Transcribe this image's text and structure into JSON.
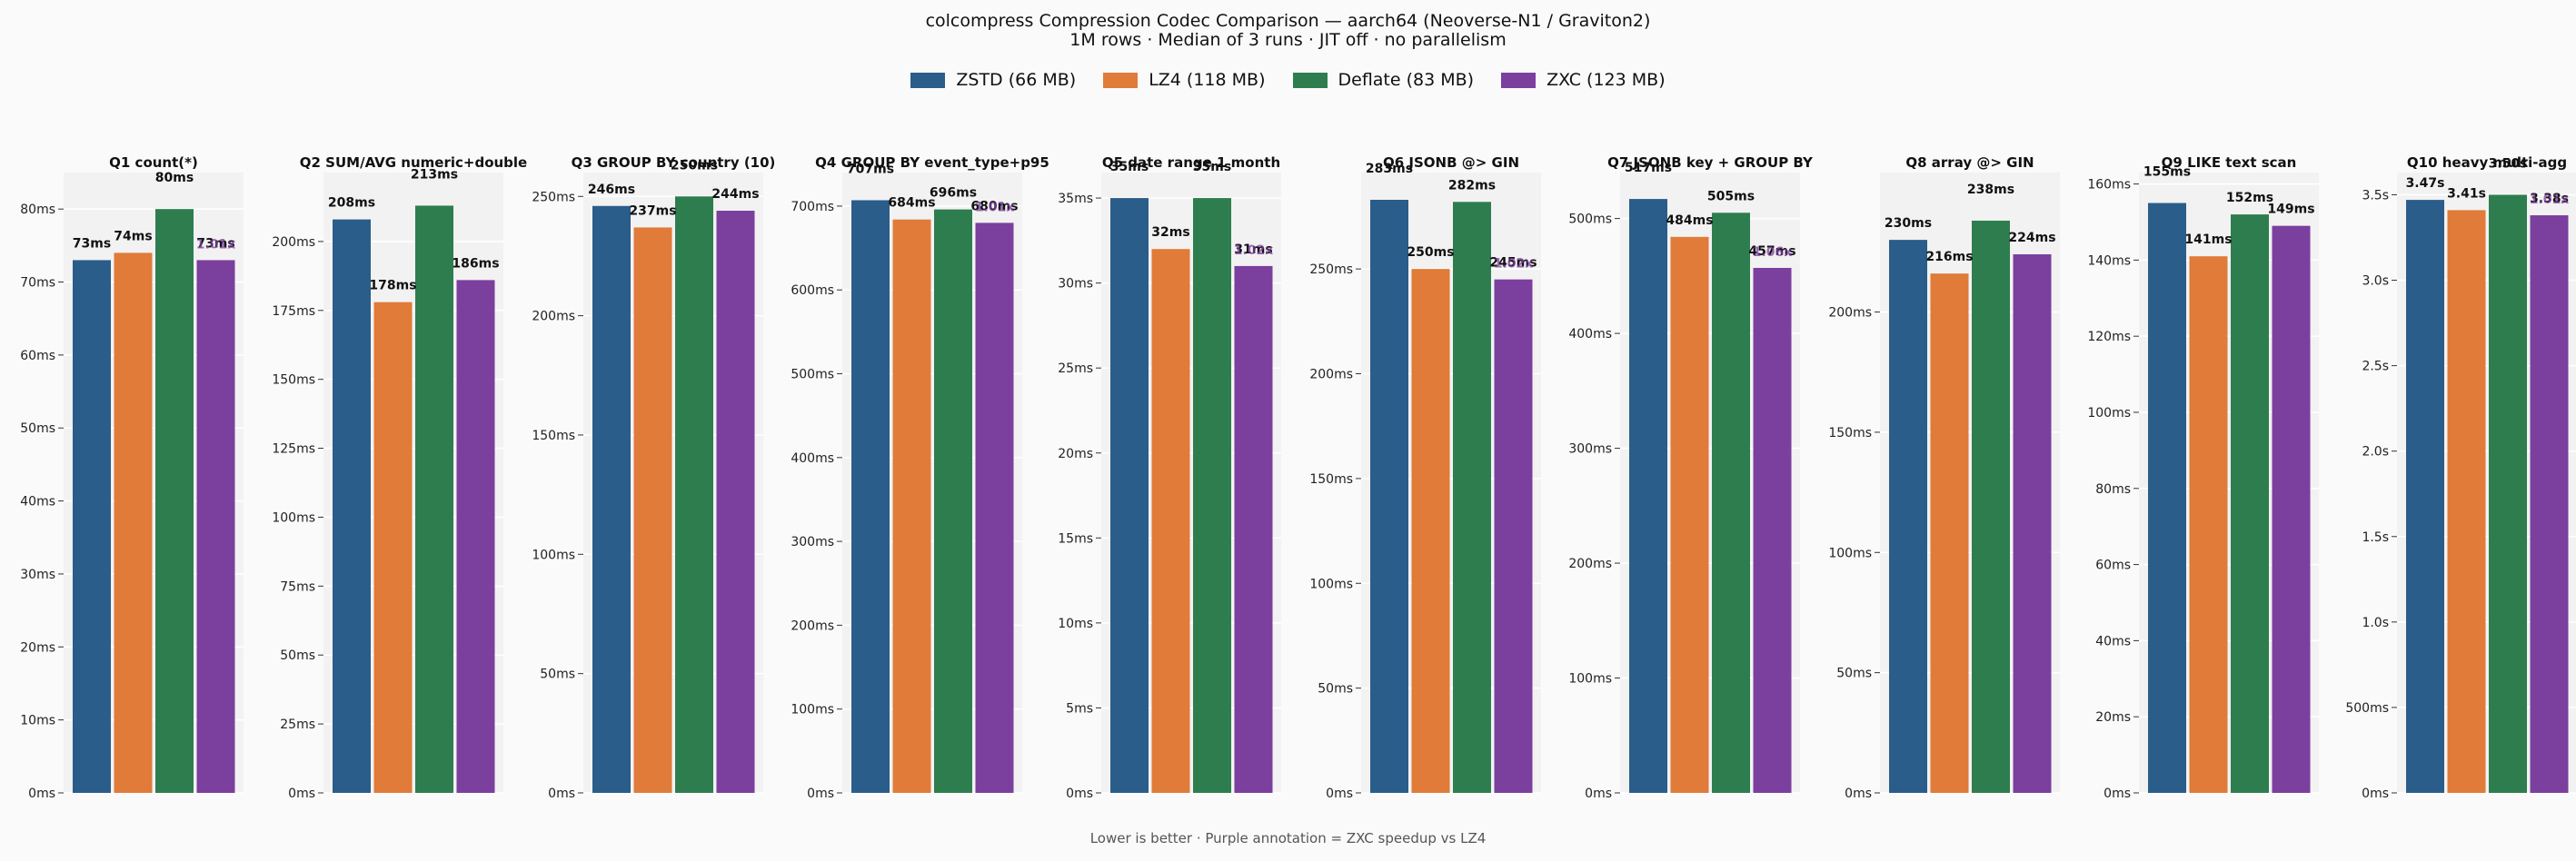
{
  "title": "colcompress Compression Codec Comparison — aarch64 (Neoverse-N1 / Graviton2)",
  "subtitle": "1M rows · Median of 3 runs · JIT off · no parallelism",
  "footer": "Lower is better  ·  Purple annotation = ZXC speedup vs LZ4",
  "colors": {
    "ZSTD": "#2a5d8a",
    "LZ4": "#e07b39",
    "Deflate": "#2e7d4f",
    "ZXC": "#7b3f9e"
  },
  "legend": [
    {
      "key": "ZSTD",
      "label": "ZSTD (66 MB)"
    },
    {
      "key": "LZ4",
      "label": "LZ4 (118 MB)"
    },
    {
      "key": "Deflate",
      "label": "Deflate (83 MB)"
    },
    {
      "key": "ZXC",
      "label": "ZXC (123 MB)"
    }
  ],
  "chart_data": [
    {
      "type": "bar",
      "title": "Q1 count(*)",
      "categories": [
        "ZSTD",
        "LZ4",
        "Deflate",
        "ZXC"
      ],
      "values": [
        73,
        74,
        80,
        73
      ],
      "value_labels": [
        "73ms",
        "74ms",
        "80ms",
        "73ms"
      ],
      "ylim": [
        0,
        85
      ],
      "ticks": [
        0,
        10,
        20,
        30,
        40,
        50,
        60,
        70,
        80
      ],
      "tick_labels": [
        "0ms",
        "10ms",
        "20ms",
        "30ms",
        "40ms",
        "50ms",
        "60ms",
        "70ms",
        "80ms"
      ],
      "zxc_annotation": "1.01x"
    },
    {
      "type": "bar",
      "title": "Q2 SUM/AVG numeric+double",
      "categories": [
        "ZSTD",
        "LZ4",
        "Deflate",
        "ZXC"
      ],
      "values": [
        208,
        178,
        213,
        186
      ],
      "value_labels": [
        "208ms",
        "178ms",
        "213ms",
        "186ms"
      ],
      "ylim": [
        0,
        225
      ],
      "ticks": [
        0,
        25,
        50,
        75,
        100,
        125,
        150,
        175,
        200
      ],
      "tick_labels": [
        "0ms",
        "25ms",
        "50ms",
        "75ms",
        "100ms",
        "125ms",
        "150ms",
        "175ms",
        "200ms"
      ],
      "zxc_annotation": ""
    },
    {
      "type": "bar",
      "title": "Q3 GROUP BY country (10)",
      "categories": [
        "ZSTD",
        "LZ4",
        "Deflate",
        "ZXC"
      ],
      "values": [
        246,
        237,
        250,
        244
      ],
      "value_labels": [
        "246ms",
        "237ms",
        "250ms",
        "244ms"
      ],
      "ylim": [
        0,
        260
      ],
      "ticks": [
        0,
        50,
        100,
        150,
        200,
        250
      ],
      "tick_labels": [
        "0ms",
        "50ms",
        "100ms",
        "150ms",
        "200ms",
        "250ms"
      ],
      "zxc_annotation": ""
    },
    {
      "type": "bar",
      "title": "Q4 GROUP BY event_type+p95",
      "categories": [
        "ZSTD",
        "LZ4",
        "Deflate",
        "ZXC"
      ],
      "values": [
        707,
        684,
        696,
        680
      ],
      "value_labels": [
        "707ms",
        "684ms",
        "696ms",
        "680ms"
      ],
      "ylim": [
        0,
        740
      ],
      "ticks": [
        0,
        100,
        200,
        300,
        400,
        500,
        600,
        700
      ],
      "tick_labels": [
        "0ms",
        "100ms",
        "200ms",
        "300ms",
        "400ms",
        "500ms",
        "600ms",
        "700ms"
      ],
      "zxc_annotation": "1.01x"
    },
    {
      "type": "bar",
      "title": "Q5 date range 1 month",
      "categories": [
        "ZSTD",
        "LZ4",
        "Deflate",
        "ZXC"
      ],
      "values": [
        35,
        32,
        35,
        31
      ],
      "value_labels": [
        "35ms",
        "32ms",
        "35ms",
        "31ms"
      ],
      "ylim": [
        0,
        36.5
      ],
      "ticks": [
        0,
        5,
        10,
        15,
        20,
        25,
        30,
        35
      ],
      "tick_labels": [
        "0ms",
        "5ms",
        "10ms",
        "15ms",
        "20ms",
        "25ms",
        "30ms",
        "35ms"
      ],
      "zxc_annotation": "1.02x"
    },
    {
      "type": "bar",
      "title": "Q6 JSONB @> GIN",
      "categories": [
        "ZSTD",
        "LZ4",
        "Deflate",
        "ZXC"
      ],
      "values": [
        283,
        250,
        282,
        245
      ],
      "value_labels": [
        "283ms",
        "250ms",
        "282ms",
        "245ms"
      ],
      "ylim": [
        0,
        296
      ],
      "ticks": [
        0,
        50,
        100,
        150,
        200,
        250
      ],
      "tick_labels": [
        "0ms",
        "50ms",
        "100ms",
        "150ms",
        "200ms",
        "250ms"
      ],
      "zxc_annotation": "1.02x"
    },
    {
      "type": "bar",
      "title": "Q7 JSONB key + GROUP BY",
      "categories": [
        "ZSTD",
        "LZ4",
        "Deflate",
        "ZXC"
      ],
      "values": [
        517,
        484,
        505,
        457
      ],
      "value_labels": [
        "517ms",
        "484ms",
        "505ms",
        "457ms"
      ],
      "ylim": [
        0,
        540
      ],
      "ticks": [
        0,
        100,
        200,
        300,
        400,
        500
      ],
      "tick_labels": [
        "0ms",
        "100ms",
        "200ms",
        "300ms",
        "400ms",
        "500ms"
      ],
      "zxc_annotation": "1.06x"
    },
    {
      "type": "bar",
      "title": "Q8 array @> GIN",
      "categories": [
        "ZSTD",
        "LZ4",
        "Deflate",
        "ZXC"
      ],
      "values": [
        230,
        216,
        238,
        224
      ],
      "value_labels": [
        "230ms",
        "216ms",
        "238ms",
        "224ms"
      ],
      "ylim": [
        0,
        258
      ],
      "ticks": [
        0,
        50,
        100,
        150,
        200
      ],
      "tick_labels": [
        "0ms",
        "50ms",
        "100ms",
        "150ms",
        "200ms"
      ],
      "zxc_annotation": ""
    },
    {
      "type": "bar",
      "title": "Q9 LIKE text scan",
      "categories": [
        "ZSTD",
        "LZ4",
        "Deflate",
        "ZXC"
      ],
      "values": [
        155,
        141,
        152,
        149
      ],
      "value_labels": [
        "155ms",
        "141ms",
        "152ms",
        "149ms"
      ],
      "ylim": [
        0,
        163
      ],
      "ticks": [
        0,
        20,
        40,
        60,
        80,
        100,
        120,
        140,
        160
      ],
      "tick_labels": [
        "0ms",
        "20ms",
        "40ms",
        "60ms",
        "80ms",
        "100ms",
        "120ms",
        "140ms",
        "160ms"
      ],
      "zxc_annotation": ""
    },
    {
      "type": "bar",
      "title": "Q10 heavy multi-agg",
      "categories": [
        "ZSTD",
        "LZ4",
        "Deflate",
        "ZXC"
      ],
      "values": [
        3.47,
        3.41,
        3.5,
        3.38
      ],
      "value_labels": [
        "3.47s",
        "3.41s",
        "3.50s",
        "3.38s"
      ],
      "ylim": [
        0,
        3.63
      ],
      "ticks": [
        0,
        0.5,
        1.0,
        1.5,
        2.0,
        2.5,
        3.0,
        3.5
      ],
      "tick_labels": [
        "0ms",
        "500ms",
        "1.0s",
        "1.5s",
        "2.0s",
        "2.5s",
        "3.0s",
        "3.5s"
      ],
      "zxc_annotation": "1.01x"
    }
  ]
}
